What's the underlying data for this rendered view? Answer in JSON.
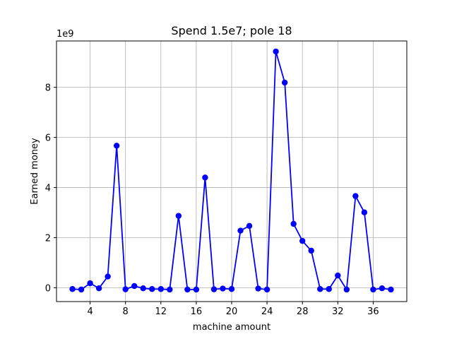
{
  "chart_data": {
    "type": "line",
    "title": "Spend 1.5e7; pole 18",
    "xlabel": "machine amount",
    "ylabel": "Earned money",
    "y_multiplier_label": "1e9",
    "x_ticks": [
      4,
      8,
      12,
      16,
      20,
      24,
      28,
      32,
      36
    ],
    "y_ticks": [
      0,
      2,
      4,
      6,
      8
    ],
    "xlim": [
      0.2,
      39.8
    ],
    "ylim": [
      -0.55,
      9.85
    ],
    "grid": true,
    "series": [
      {
        "color": "#0000ff",
        "marker": "circle",
        "x": [
          2,
          3,
          4,
          5,
          6,
          7,
          8,
          9,
          10,
          11,
          12,
          13,
          14,
          15,
          16,
          17,
          18,
          19,
          20,
          21,
          22,
          23,
          24,
          25,
          26,
          27,
          28,
          29,
          30,
          31,
          32,
          33,
          34,
          35,
          36,
          37,
          38
        ],
        "y": [
          -0.05,
          -0.07,
          0.18,
          -0.02,
          0.45,
          5.67,
          -0.06,
          0.07,
          -0.02,
          -0.05,
          -0.05,
          -0.07,
          2.87,
          -0.07,
          -0.07,
          4.4,
          -0.06,
          -0.03,
          -0.05,
          2.28,
          2.47,
          -0.03,
          -0.07,
          9.43,
          8.19,
          2.55,
          1.87,
          1.48,
          -0.05,
          -0.05,
          0.49,
          -0.07,
          3.66,
          3.01,
          -0.07,
          -0.02,
          -0.07
        ]
      }
    ]
  }
}
